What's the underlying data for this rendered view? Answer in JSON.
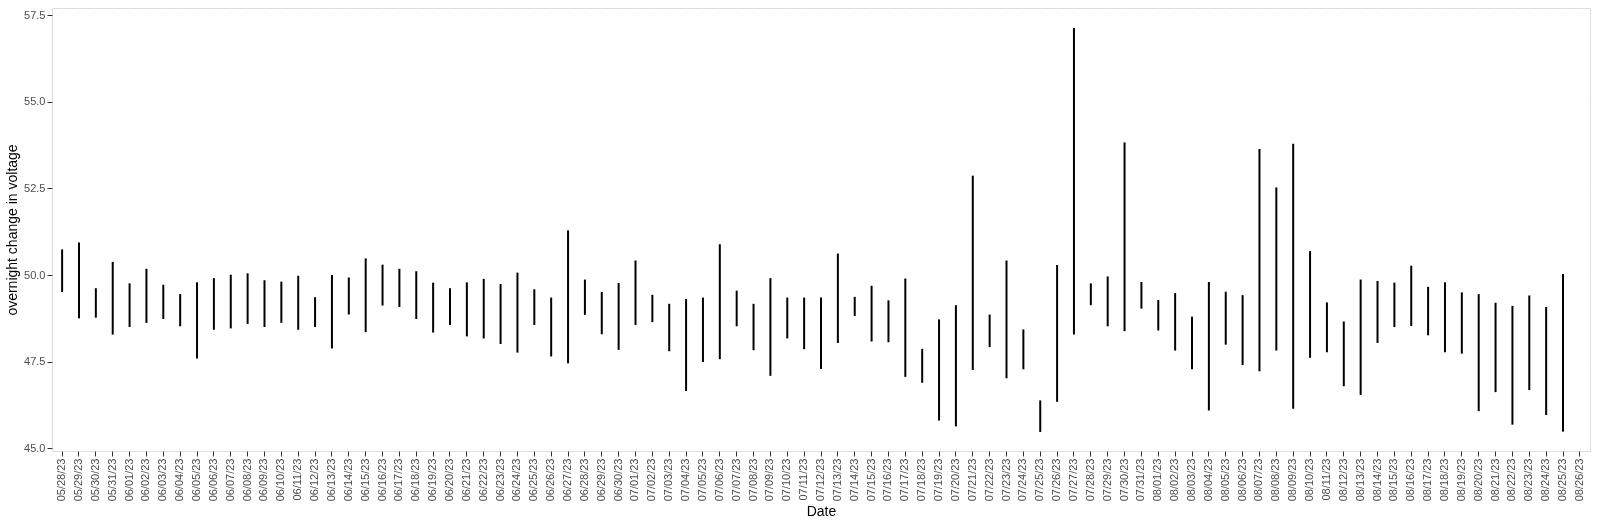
{
  "chart_data": {
    "type": "bar",
    "xlabel": "Date",
    "ylabel": "overnight change in voltage",
    "categories": [
      "05/28/23",
      "05/29/23",
      "05/30/23",
      "05/31/23",
      "06/01/23",
      "06/02/23",
      "06/03/23",
      "06/04/23",
      "06/05/23",
      "06/06/23",
      "06/07/23",
      "06/08/23",
      "06/09/23",
      "06/10/23",
      "06/11/23",
      "06/12/23",
      "06/13/23",
      "06/14/23",
      "06/15/23",
      "06/16/23",
      "06/17/23",
      "06/18/23",
      "06/19/23",
      "06/20/23",
      "06/21/23",
      "06/22/23",
      "06/23/23",
      "06/24/23",
      "06/25/23",
      "06/26/23",
      "06/27/23",
      "06/28/23",
      "06/29/23",
      "06/30/23",
      "07/01/23",
      "07/02/23",
      "07/03/23",
      "07/04/23",
      "07/05/23",
      "07/06/23",
      "07/07/23",
      "07/08/23",
      "07/09/23",
      "07/10/23",
      "07/11/23",
      "07/12/23",
      "07/13/23",
      "07/14/23",
      "07/15/23",
      "07/16/23",
      "07/17/23",
      "07/18/23",
      "07/19/23",
      "07/20/23",
      "07/21/23",
      "07/22/23",
      "07/23/23",
      "07/24/23",
      "07/25/23",
      "07/26/23",
      "07/27/23",
      "07/28/23",
      "07/29/23",
      "07/30/23",
      "07/31/23",
      "08/01/23",
      "08/02/23",
      "08/03/23",
      "08/04/23",
      "08/05/23",
      "08/06/23",
      "08/07/23",
      "08/08/23",
      "08/09/23",
      "08/10/23",
      "08/11/23",
      "08/12/23",
      "08/13/23",
      "08/14/23",
      "08/15/23",
      "08/16/23",
      "08/17/23",
      "08/18/23",
      "08/19/23",
      "08/20/23",
      "08/21/23",
      "08/22/23",
      "08/23/23",
      "08/24/23",
      "08/25/23",
      "08/26/23"
    ],
    "base": [
      49.51,
      48.75,
      48.77,
      48.28,
      48.5,
      48.62,
      48.73,
      48.52,
      47.59,
      48.42,
      48.46,
      48.59,
      48.5,
      48.62,
      48.42,
      48.5,
      47.88,
      48.86,
      48.35,
      49.12,
      49.08,
      48.73,
      48.34,
      48.56,
      48.23,
      48.17,
      48.01,
      47.76,
      48.56,
      47.65,
      47.45,
      48.85,
      48.29,
      47.84,
      48.56,
      48.64,
      47.8,
      46.65,
      47.49,
      47.57,
      48.52,
      47.83,
      47.09,
      48.17,
      47.86,
      47.29,
      48.04,
      48.82,
      48.08,
      48.06,
      47.06,
      46.89,
      45.8,
      45.63,
      47.26,
      47.92,
      47.02,
      47.28,
      45.47,
      46.34,
      48.28,
      49.13,
      48.52,
      48.38,
      49.03,
      48.4,
      47.82,
      47.28,
      46.09,
      47.99,
      47.4,
      47.22,
      47.82,
      46.14,
      47.61,
      47.77,
      46.79,
      46.54,
      48.04,
      48.5,
      48.53,
      48.26,
      47.77,
      47.73,
      46.07,
      46.62,
      45.68,
      46.68,
      45.96,
      45.48,
      null
    ],
    "values": [
      1.23,
      2.19,
      0.85,
      2.1,
      1.26,
      1.56,
      0.99,
      0.93,
      2.2,
      1.49,
      1.55,
      1.46,
      1.35,
      1.19,
      1.56,
      0.86,
      2.12,
      1.07,
      2.13,
      1.18,
      1.1,
      1.38,
      1.44,
      1.06,
      1.56,
      1.72,
      1.73,
      2.31,
      1.03,
      1.7,
      3.84,
      1.02,
      1.22,
      1.93,
      1.86,
      0.79,
      1.37,
      2.66,
      1.86,
      3.32,
      1.03,
      1.34,
      2.82,
      1.18,
      1.49,
      2.06,
      2.58,
      0.55,
      1.61,
      1.21,
      2.84,
      0.98,
      2.92,
      3.5,
      5.61,
      0.94,
      3.4,
      1.15,
      0.91,
      3.95,
      8.85,
      0.63,
      1.44,
      5.45,
      0.77,
      0.88,
      1.66,
      1.52,
      3.71,
      1.53,
      2.02,
      6.42,
      4.71,
      7.65,
      3.08,
      1.44,
      1.87,
      3.33,
      1.79,
      1.28,
      1.74,
      1.4,
      2.02,
      1.77,
      3.38,
      2.58,
      3.43,
      2.73,
      3.12,
      4.55,
      null
    ],
    "color": "#000000",
    "ylim": [
      44.92,
      57.71
    ],
    "yticks": [
      {
        "value": 45,
        "label": "45.0"
      },
      {
        "value": 47.5,
        "label": "47.5"
      },
      {
        "value": 50,
        "label": "50.0"
      },
      {
        "value": 52.5,
        "label": "52.5"
      },
      {
        "value": 55,
        "label": "55.0"
      },
      {
        "value": 57.5,
        "label": "57.5"
      }
    ],
    "grid": true
  }
}
